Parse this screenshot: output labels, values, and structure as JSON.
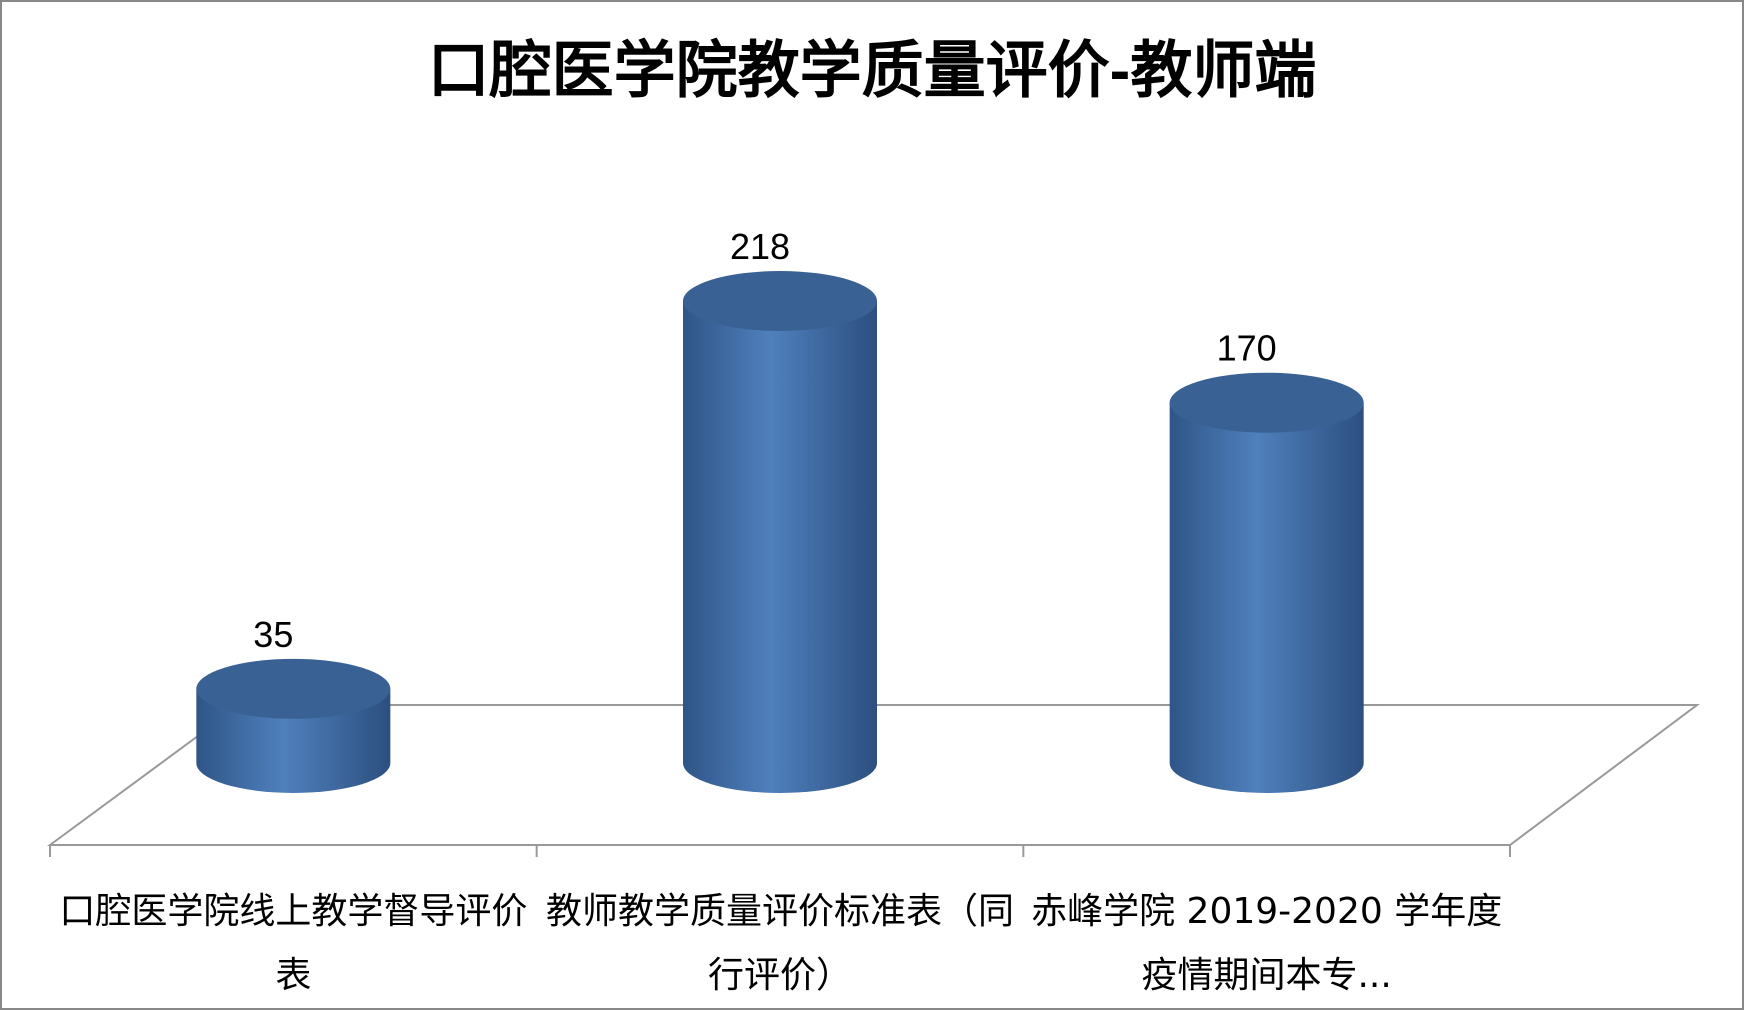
{
  "chart_data": {
    "type": "cylinder",
    "title": "口腔医学院教学质量评价-教师端",
    "categories": [
      "口腔医学院线上教学督导评价表",
      "教师教学质量评价标准表（同行评价）",
      "赤峰学院 2019-2020 学年度疫情期间本专..."
    ],
    "values": [
      35,
      218,
      170
    ],
    "color": "#4a7ab5"
  }
}
